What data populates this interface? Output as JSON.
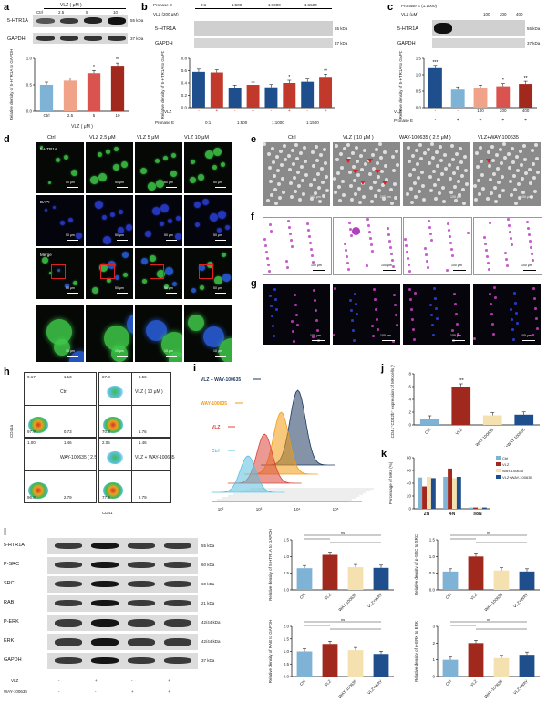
{
  "panels": {
    "a": {
      "label": "a",
      "header": "VLZ ( μM )",
      "lanes": [
        "Ctrl",
        "2.5",
        "5",
        "10"
      ],
      "blots": [
        {
          "name": "5-HTR1A",
          "kda": "55 kDa"
        },
        {
          "name": "GAPDH",
          "kda": "37 kDa"
        }
      ],
      "ylabel": "Relative density of 5-HTR1A to GAPDH",
      "xlabel": "VLZ ( μM )",
      "chart_data": {
        "type": "bar",
        "categories": [
          "Ctrl",
          "2.5",
          "5",
          "10"
        ],
        "values": [
          0.5,
          0.58,
          0.72,
          0.86
        ],
        "ylim": [
          0,
          1.0
        ],
        "yticks": [
          "0.0",
          "0.5",
          "1.0"
        ],
        "colors": [
          "#7fb3d5",
          "#f1a38a",
          "#d9534f",
          "#a0281d"
        ],
        "sig": [
          "",
          "",
          "*",
          "**"
        ]
      }
    },
    "b": {
      "label": "b",
      "rows": [
        {
          "name": "Pronase E",
          "values": [
            "0:1",
            "1:500",
            "1:1000",
            "1:1500"
          ]
        },
        {
          "name": "VLZ (200 μM)",
          "values": [
            "-",
            "+",
            "-",
            "+",
            "-",
            "+",
            "-",
            "+"
          ]
        }
      ],
      "blots": [
        {
          "name": "5-HTR1A",
          "kda": "55 kDa"
        },
        {
          "name": "GAPDH",
          "kda": "37 kDa"
        }
      ],
      "ylabel": "Relative density of 5-HTR1A to GAPDH",
      "vlz_row": [
        "-",
        "+",
        "-",
        "+",
        "-",
        "+",
        "-",
        "+"
      ],
      "pronase_row": [
        "0:1",
        "1:500",
        "1:1000",
        "1:1500"
      ],
      "vlz_label": "VLZ",
      "pronase_label": "Pronase E",
      "chart_data": {
        "type": "bar",
        "categories": [
          "0:1 -",
          "0:1 +",
          "1:500 -",
          "1:500 +",
          "1:1000 -",
          "1:1000 +",
          "1:1500 -",
          "1:1500 +"
        ],
        "values": [
          0.58,
          0.57,
          0.32,
          0.37,
          0.33,
          0.4,
          0.42,
          0.5
        ],
        "ylim": [
          0,
          0.8
        ],
        "yticks": [
          "0.0",
          "0.2",
          "0.4",
          "0.6",
          "0.8"
        ],
        "colors": [
          "#1f4e8c",
          "#c0392b",
          "#1f4e8c",
          "#c0392b",
          "#1f4e8c",
          "#c0392b",
          "#1f4e8c",
          "#c0392b"
        ],
        "sig": [
          "",
          "",
          "",
          "",
          "",
          "*",
          "",
          "**"
        ]
      }
    },
    "c": {
      "label": "c",
      "rows": [
        {
          "name": "Pronase E (1:1000)",
          "values": [
            "-",
            "+",
            "+",
            "+",
            "+"
          ]
        },
        {
          "name": "VLZ (μM)",
          "values": [
            "",
            "",
            "100",
            "200",
            "400"
          ]
        }
      ],
      "blots": [
        {
          "name": "5-HTR1A",
          "kda": "55 kDa"
        },
        {
          "name": "GAPDH",
          "kda": "37 kDa"
        }
      ],
      "ylabel": "Relative density of 5-HTR1A to GAPDH",
      "vlz_row": [
        "-",
        "-",
        "100",
        "200",
        "400"
      ],
      "pronase_row": [
        "-",
        "+",
        "+",
        "+",
        "+"
      ],
      "vlz_label": "VLZ",
      "pronase_label": "Pronase E",
      "chart_data": {
        "type": "bar",
        "categories": [
          "Ctrl",
          "Pronase",
          "100",
          "200",
          "400"
        ],
        "values": [
          1.2,
          0.55,
          0.6,
          0.65,
          0.72
        ],
        "ylim": [
          0,
          1.5
        ],
        "yticks": [
          "0.0",
          "0.5",
          "1.0",
          "1.5"
        ],
        "colors": [
          "#1f4e8c",
          "#7fb3d5",
          "#f1a38a",
          "#d9534f",
          "#a0281d"
        ],
        "sig": [
          "***",
          "",
          "",
          "*",
          "**"
        ]
      }
    },
    "d": {
      "label": "d",
      "columns": [
        "Ctrl",
        "VLZ 2.5 μM",
        "VLZ 5 μM",
        "VLZ 10 μM"
      ],
      "rows": [
        "5-HTR1A",
        "DAPI",
        "Merge"
      ],
      "scale": [
        "50 μm",
        "50 μm",
        "50 μm",
        "50 μm"
      ],
      "zoom_scale": [
        "10 μm",
        "10 μm",
        "10 μm",
        "10 μm"
      ]
    },
    "e": {
      "label": "e",
      "columns": [
        "Ctrl",
        "VLZ ( 10 μM )",
        "WAY-100635 ( 2.5 μM )",
        "VLZ+WAY-100635"
      ],
      "scale": [
        "100 μm",
        "100 μm",
        "100 μm",
        "100 μm"
      ]
    },
    "f": {
      "label": "f",
      "scale": [
        "100 μm",
        "100 μm",
        "100 μm",
        "100 μm"
      ]
    },
    "g": {
      "label": "g",
      "scale": [
        "100 μm",
        "100 μm",
        "100 μm",
        "100 μm"
      ]
    },
    "h": {
      "label": "h",
      "ylabel": "CD41a",
      "xlabel": "CD41",
      "plots": [
        {
          "name": "Ctrl",
          "q": [
            "0.17",
            "1.13",
            "97.9",
            "0.73"
          ]
        },
        {
          "name": "VLZ ( 10 μM )",
          "q": [
            "27.3",
            "0.56",
            "70.3",
            "1.76"
          ]
        },
        {
          "name": "WAY-100635 ( 2.5 μM )",
          "q": [
            "1.00",
            "1.46",
            "96.8",
            "2.79"
          ]
        },
        {
          "name": "VLZ + WAY-100635",
          "q": [
            "2.05",
            "1.46",
            "77.5",
            "2.79"
          ]
        }
      ]
    },
    "i": {
      "label": "i",
      "legend": [
        {
          "name": "VLZ + WAY-100635",
          "color": "#1f3a5f"
        },
        {
          "name": "WAY-100635",
          "color": "#f39c12"
        },
        {
          "name": "VLZ",
          "color": "#d9453b"
        },
        {
          "name": "Ctrl",
          "color": "#5bc0de"
        }
      ],
      "xticks": [
        "10²",
        "10³",
        "10⁴",
        "10⁵"
      ]
    },
    "j": {
      "label": "j",
      "ylabel": "CD41⁺CD42b⁺ expression of MK cells (%)",
      "chart_data": {
        "type": "bar",
        "categories": [
          "Ctrl",
          "VLZ",
          "WAY-100635",
          "VLZ+WAY-100635"
        ],
        "values": [
          1.0,
          6.0,
          1.5,
          1.6
        ],
        "ylim": [
          0,
          8
        ],
        "yticks": [
          "0",
          "2",
          "4",
          "6",
          "8"
        ],
        "colors": [
          "#7fb3d5",
          "#a0281d",
          "#f5e0b0",
          "#1f4e8c"
        ],
        "sig": [
          "",
          "***",
          "",
          ""
        ]
      }
    },
    "k": {
      "label": "k",
      "ylabel": "Percentage of MKs (%)",
      "legend": [
        "Ctrl",
        "VLZ",
        "WAY-100635",
        "VLZ+WAY-100635"
      ],
      "chart_data": {
        "type": "bar",
        "categories": [
          "2N",
          "4N",
          "≥8N"
        ],
        "series": [
          {
            "name": "Ctrl",
            "values": [
              49,
              50,
              2
            ]
          },
          {
            "name": "VLZ",
            "values": [
              35,
              63,
              2
            ]
          },
          {
            "name": "WAY-100635",
            "values": [
              50,
              48,
              2
            ]
          },
          {
            "name": "VLZ+WAY-100635",
            "values": [
              48,
              50,
              2
            ]
          }
        ],
        "ylim": [
          0,
          80
        ],
        "yticks": [
          "0",
          "20",
          "40",
          "60",
          "80"
        ],
        "colors": [
          "#7fb3d5",
          "#a0281d",
          "#f5e0b0",
          "#1f4e8c"
        ]
      }
    },
    "l": {
      "label": "l",
      "blots": [
        {
          "name": "5-HTR1A",
          "kda": "55 kDa"
        },
        {
          "name": "P-SRC",
          "kda": "60 kDa"
        },
        {
          "name": "SRC",
          "kda": "60 kDa"
        },
        {
          "name": "RAB",
          "kda": "21 kDa"
        },
        {
          "name": "P-ERK",
          "kda": "42/44 kDa"
        },
        {
          "name": "ERK",
          "kda": "42/44 kDa"
        },
        {
          "name": "GAPDH",
          "kda": "37 kDa"
        }
      ],
      "vlz_label": "VLZ",
      "way_label": "WAY-100635",
      "vlz_row": [
        "-",
        "+",
        "-",
        "+"
      ],
      "way_row": [
        "-",
        "-",
        "+",
        "+"
      ],
      "charts": [
        {
          "ylabel": "Relative density of 5-HTR1A to GAPDH",
          "categories": [
            "Ctrl",
            "VLZ",
            "WAY-100635",
            "VLZ+WAY"
          ],
          "values": [
            0.65,
            1.05,
            0.68,
            0.66
          ],
          "ylim": [
            0,
            1.5
          ],
          "yticks": [
            "0.0",
            "0.5",
            "1.0",
            "1.5"
          ]
        },
        {
          "ylabel": "Relative density of p-SRC to SRC",
          "categories": [
            "Ctrl",
            "VLZ",
            "WAY-100635",
            "VLZ+WAY"
          ],
          "values": [
            0.55,
            1.0,
            0.58,
            0.55
          ],
          "ylim": [
            0,
            1.5
          ],
          "yticks": [
            "0.0",
            "0.5",
            "1.0",
            "1.5"
          ]
        },
        {
          "ylabel": "Relative density of RAB to GAPDH",
          "categories": [
            "Ctrl",
            "VLZ",
            "WAY-100635",
            "VLZ+WAY"
          ],
          "values": [
            1.0,
            1.3,
            1.05,
            0.9
          ],
          "ylim": [
            0,
            2.0
          ],
          "yticks": [
            "0.0",
            "0.5",
            "1.0",
            "1.5",
            "2.0"
          ]
        },
        {
          "ylabel": "Relative density of p-ERK to ERK",
          "categories": [
            "Ctrl",
            "VLZ",
            "WAY-100635",
            "VLZ+WAY"
          ],
          "values": [
            1.0,
            2.0,
            1.1,
            1.3
          ],
          "ylim": [
            0,
            3
          ],
          "yticks": [
            "0",
            "1",
            "2",
            "3"
          ]
        }
      ],
      "colors": [
        "#7fb3d5",
        "#a0281d",
        "#f5e0b0",
        "#1f4e8c"
      ],
      "sig_ns": "ns"
    }
  }
}
